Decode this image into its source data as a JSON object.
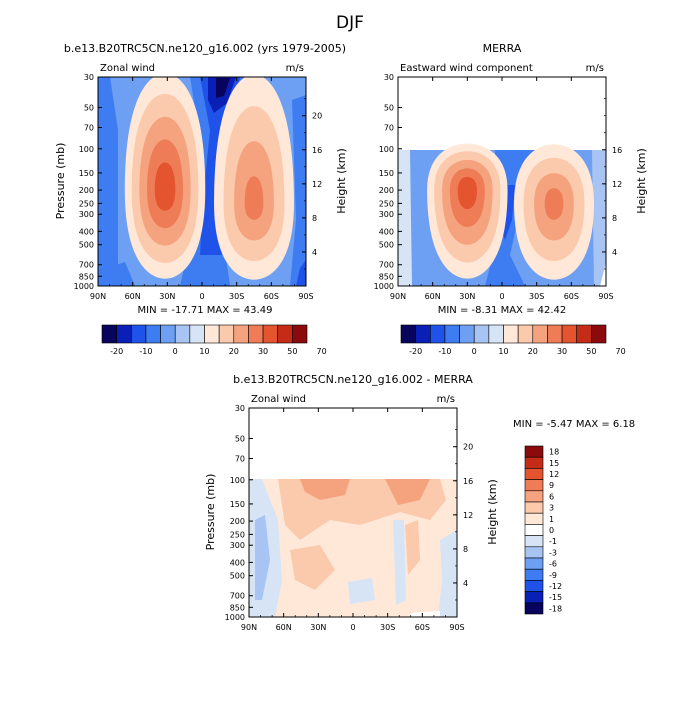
{
  "figure": {
    "title": "DJF"
  },
  "chart_data": [
    {
      "type": "heatmap",
      "title": "b.e13.B20TRC5CN.ne120_g16.002 (yrs 1979-2005)",
      "left_label": "Zonal wind",
      "right_label": "m/s",
      "ylabel": "Pressure (mb)",
      "ylabel_right": "Height (km)",
      "x_ticks": [
        "90N",
        "60N",
        "30N",
        "0",
        "30S",
        "60S",
        "90S"
      ],
      "y_ticks": [
        "30",
        "50",
        "70",
        "100",
        "150",
        "200",
        "250",
        "300",
        "400",
        "500",
        "700",
        "850",
        "1000"
      ],
      "height_ticks": [
        "20",
        "16",
        "12",
        "8",
        "4"
      ],
      "stats": "MIN = -17.71   MAX =  43.49",
      "data_top_pressure": 30,
      "cbar_labels": [
        "-20",
        "-10",
        "0",
        "10",
        "20",
        "30",
        "50",
        "70"
      ],
      "jets": [
        {
          "lat": 32,
          "pressure": 200,
          "peak": 43.49
        },
        {
          "lat": -45,
          "pressure": 250,
          "peak": 30
        }
      ],
      "minimum": {
        "lat": 2,
        "pressure": 30,
        "value": -17.71
      }
    },
    {
      "type": "heatmap",
      "title": "MERRA",
      "left_label": "Eastward wind component",
      "right_label": "m/s",
      "ylabel": "",
      "ylabel_right": "Height (km)",
      "x_ticks": [
        "90N",
        "60N",
        "30N",
        "0",
        "30S",
        "60S",
        "90S"
      ],
      "y_ticks": [
        "30",
        "50",
        "70",
        "100",
        "150",
        "200",
        "250",
        "300",
        "400",
        "500",
        "700",
        "850",
        "1000"
      ],
      "height_ticks": [
        "16",
        "12",
        "8",
        "4"
      ],
      "stats": "MIN =  -8.31   MAX =  42.42",
      "data_top_pressure": 100,
      "cbar_labels": [
        "-20",
        "-10",
        "0",
        "10",
        "20",
        "30",
        "50",
        "70"
      ],
      "jets": [
        {
          "lat": 30,
          "pressure": 200,
          "peak": 42.42
        },
        {
          "lat": -45,
          "pressure": 250,
          "peak": 30
        }
      ],
      "minimum": {
        "lat": 2,
        "pressure": 200,
        "value": -8.31
      }
    },
    {
      "type": "heatmap",
      "title": "b.e13.B20TRC5CN.ne120_g16.002 - MERRA",
      "left_label": "Zonal wind",
      "right_label": "m/s",
      "ylabel": "Pressure (mb)",
      "ylabel_right": "Height (km)",
      "x_ticks": [
        "90N",
        "60N",
        "30N",
        "0",
        "30S",
        "60S",
        "90S"
      ],
      "y_ticks": [
        "30",
        "50",
        "70",
        "100",
        "150",
        "200",
        "250",
        "300",
        "400",
        "500",
        "700",
        "850",
        "1000"
      ],
      "height_ticks": [
        "20",
        "16",
        "12",
        "8",
        "4"
      ],
      "stats": "MIN =  -5.47   MAX =   6.18",
      "data_top_pressure": 100,
      "cbar_labels": [
        "18",
        "15",
        "12",
        "9",
        "6",
        "3",
        "1",
        "0",
        "-1",
        "-3",
        "-6",
        "-9",
        "-12",
        "-15",
        "-18"
      ]
    }
  ],
  "colors": {
    "levels_full": [
      "#08035c",
      "#0a1fb5",
      "#1f52e8",
      "#3e7cf2",
      "#6d9ff2",
      "#a8c4f2",
      "#d7e4f6",
      "#ffe8d8",
      "#fbc9ac",
      "#f5a37e",
      "#ee7c56",
      "#e3542f",
      "#c52c17",
      "#8a0a0d"
    ],
    "levels_diff": [
      "#8a0a0d",
      "#c52c17",
      "#e3542f",
      "#ee7c56",
      "#f5a37e",
      "#fbc9ac",
      "#ffe8d8",
      "#ffffff",
      "#d7e4f6",
      "#a8c4f2",
      "#6d9ff2",
      "#3e7cf2",
      "#1f52e8",
      "#0a1fb5",
      "#08035c"
    ]
  }
}
